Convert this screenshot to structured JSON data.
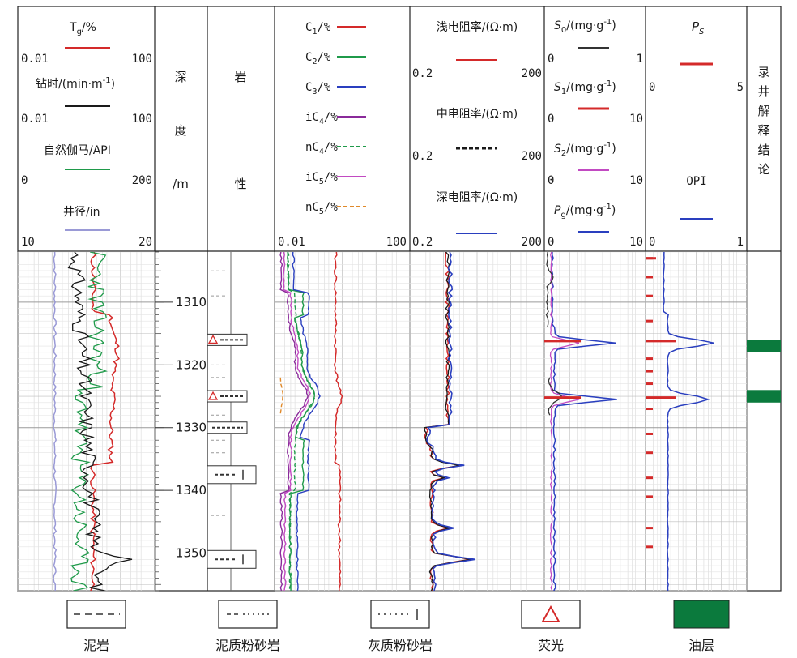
{
  "tracks": {
    "track1": {
      "tg": {
        "label": "T",
        "sub": "g",
        "unit": "/%",
        "min": "0.01",
        "max": "100"
      },
      "drill_time": {
        "label": "钻时/(min·m",
        "sup": "-1",
        "tail": ")",
        "min": "0.01",
        "max": "100"
      },
      "gamma": {
        "label": "自然伽马/API",
        "min": "0",
        "max": "200"
      },
      "caliper": {
        "label": "井径/in",
        "min": "10",
        "max": "20"
      }
    },
    "depth": {
      "label_chars": [
        "深",
        "度",
        "/m"
      ]
    },
    "lithology": {
      "label_chars": [
        "岩",
        "性"
      ]
    },
    "gas": {
      "items": [
        {
          "label": "C",
          "sub": "1",
          "unit": "/%",
          "color": "#d42a2a",
          "dash": false
        },
        {
          "label": "C",
          "sub": "2",
          "unit": "/%",
          "color": "#1f9a4a",
          "dash": false
        },
        {
          "label": "C",
          "sub": "3",
          "unit": "/%",
          "color": "#2a3fbf",
          "dash": false
        },
        {
          "label": "iC",
          "sub": "4",
          "unit": "/%",
          "color": "#8a2a9a",
          "dash": false
        },
        {
          "label": "nC",
          "sub": "4",
          "unit": "/%",
          "color": "#1f9a4a",
          "dash": true
        },
        {
          "label": "iC",
          "sub": "5",
          "unit": "/%",
          "color": "#c24ac2",
          "dash": false
        },
        {
          "label": "nC",
          "sub": "5",
          "unit": "/%",
          "color": "#e0892a",
          "dash": true
        }
      ],
      "min": "0.01",
      "max": "100"
    },
    "resistivity": {
      "shallow": {
        "label": "浅电阻率/(Ω·m)",
        "min": "0.2",
        "max": "200"
      },
      "medium": {
        "label": "中电阻率/(Ω·m)",
        "min": "0.2",
        "max": "200"
      },
      "deep": {
        "label": "深电阻率/(Ω·m)",
        "min": "0.2",
        "max": "200"
      }
    },
    "pyrolysis": {
      "s0": {
        "label": "S",
        "sub": "0",
        "unit": "/(mg·g",
        "sup": "-1",
        "tail": ")",
        "min": "0",
        "max": "1"
      },
      "s1": {
        "label": "S",
        "sub": "1",
        "unit": "/(mg·g",
        "sup": "-1",
        "tail": ")",
        "min": "0",
        "max": "10"
      },
      "s2": {
        "label": "S",
        "sub": "2",
        "unit": "/(mg·g",
        "sup": "-1",
        "tail": ")",
        "min": "0",
        "max": "10"
      },
      "pg": {
        "label": "P",
        "sub": "g",
        "unit": "/(mg·g",
        "sup": "-1",
        "tail": ")",
        "min": "0",
        "max": "10"
      }
    },
    "ps_opi": {
      "ps": {
        "label": "P",
        "sub": "S",
        "min": "0",
        "max": "5"
      },
      "opi": {
        "label": "OPI",
        "min": "0",
        "max": "1"
      }
    },
    "conclusion": {
      "label_chars": [
        "录",
        "井",
        "解",
        "释",
        "结",
        "论"
      ]
    }
  },
  "depth_ticks": [
    1310,
    1320,
    1330,
    1340,
    1350
  ],
  "depth_range": [
    1302,
    1356
  ],
  "oil_layers": [
    [
      1316.0,
      1318.0
    ],
    [
      1324.0,
      1326.0
    ]
  ],
  "fluorescence_depths": [
    1316.0,
    1325.0
  ],
  "colors": {
    "tg": "#d42a2a",
    "drill_time": "#1a1a1a",
    "gamma": "#1f9a4a",
    "caliper": "#9a9ad6",
    "shallow": "#d42a2a",
    "medium": "#1a1a1a",
    "deep": "#2a3fbf",
    "s0": "#333333",
    "s1": "#d42a2a",
    "s2": "#c24ac2",
    "pg": "#2a3fbf",
    "ps": "#d42a2a",
    "opi": "#2a3fbf",
    "oil": "#0b7a3d",
    "fluor": "#d42a2a"
  },
  "legend": [
    {
      "key": "mudstone",
      "label": "泥岩"
    },
    {
      "key": "muddy_siltstone",
      "label": "泥质粉砂岩"
    },
    {
      "key": "calc_siltstone",
      "label": "灰质粉砂岩"
    },
    {
      "key": "fluorescence",
      "label": "荧光"
    },
    {
      "key": "oil_layer",
      "label": "油层"
    }
  ]
}
